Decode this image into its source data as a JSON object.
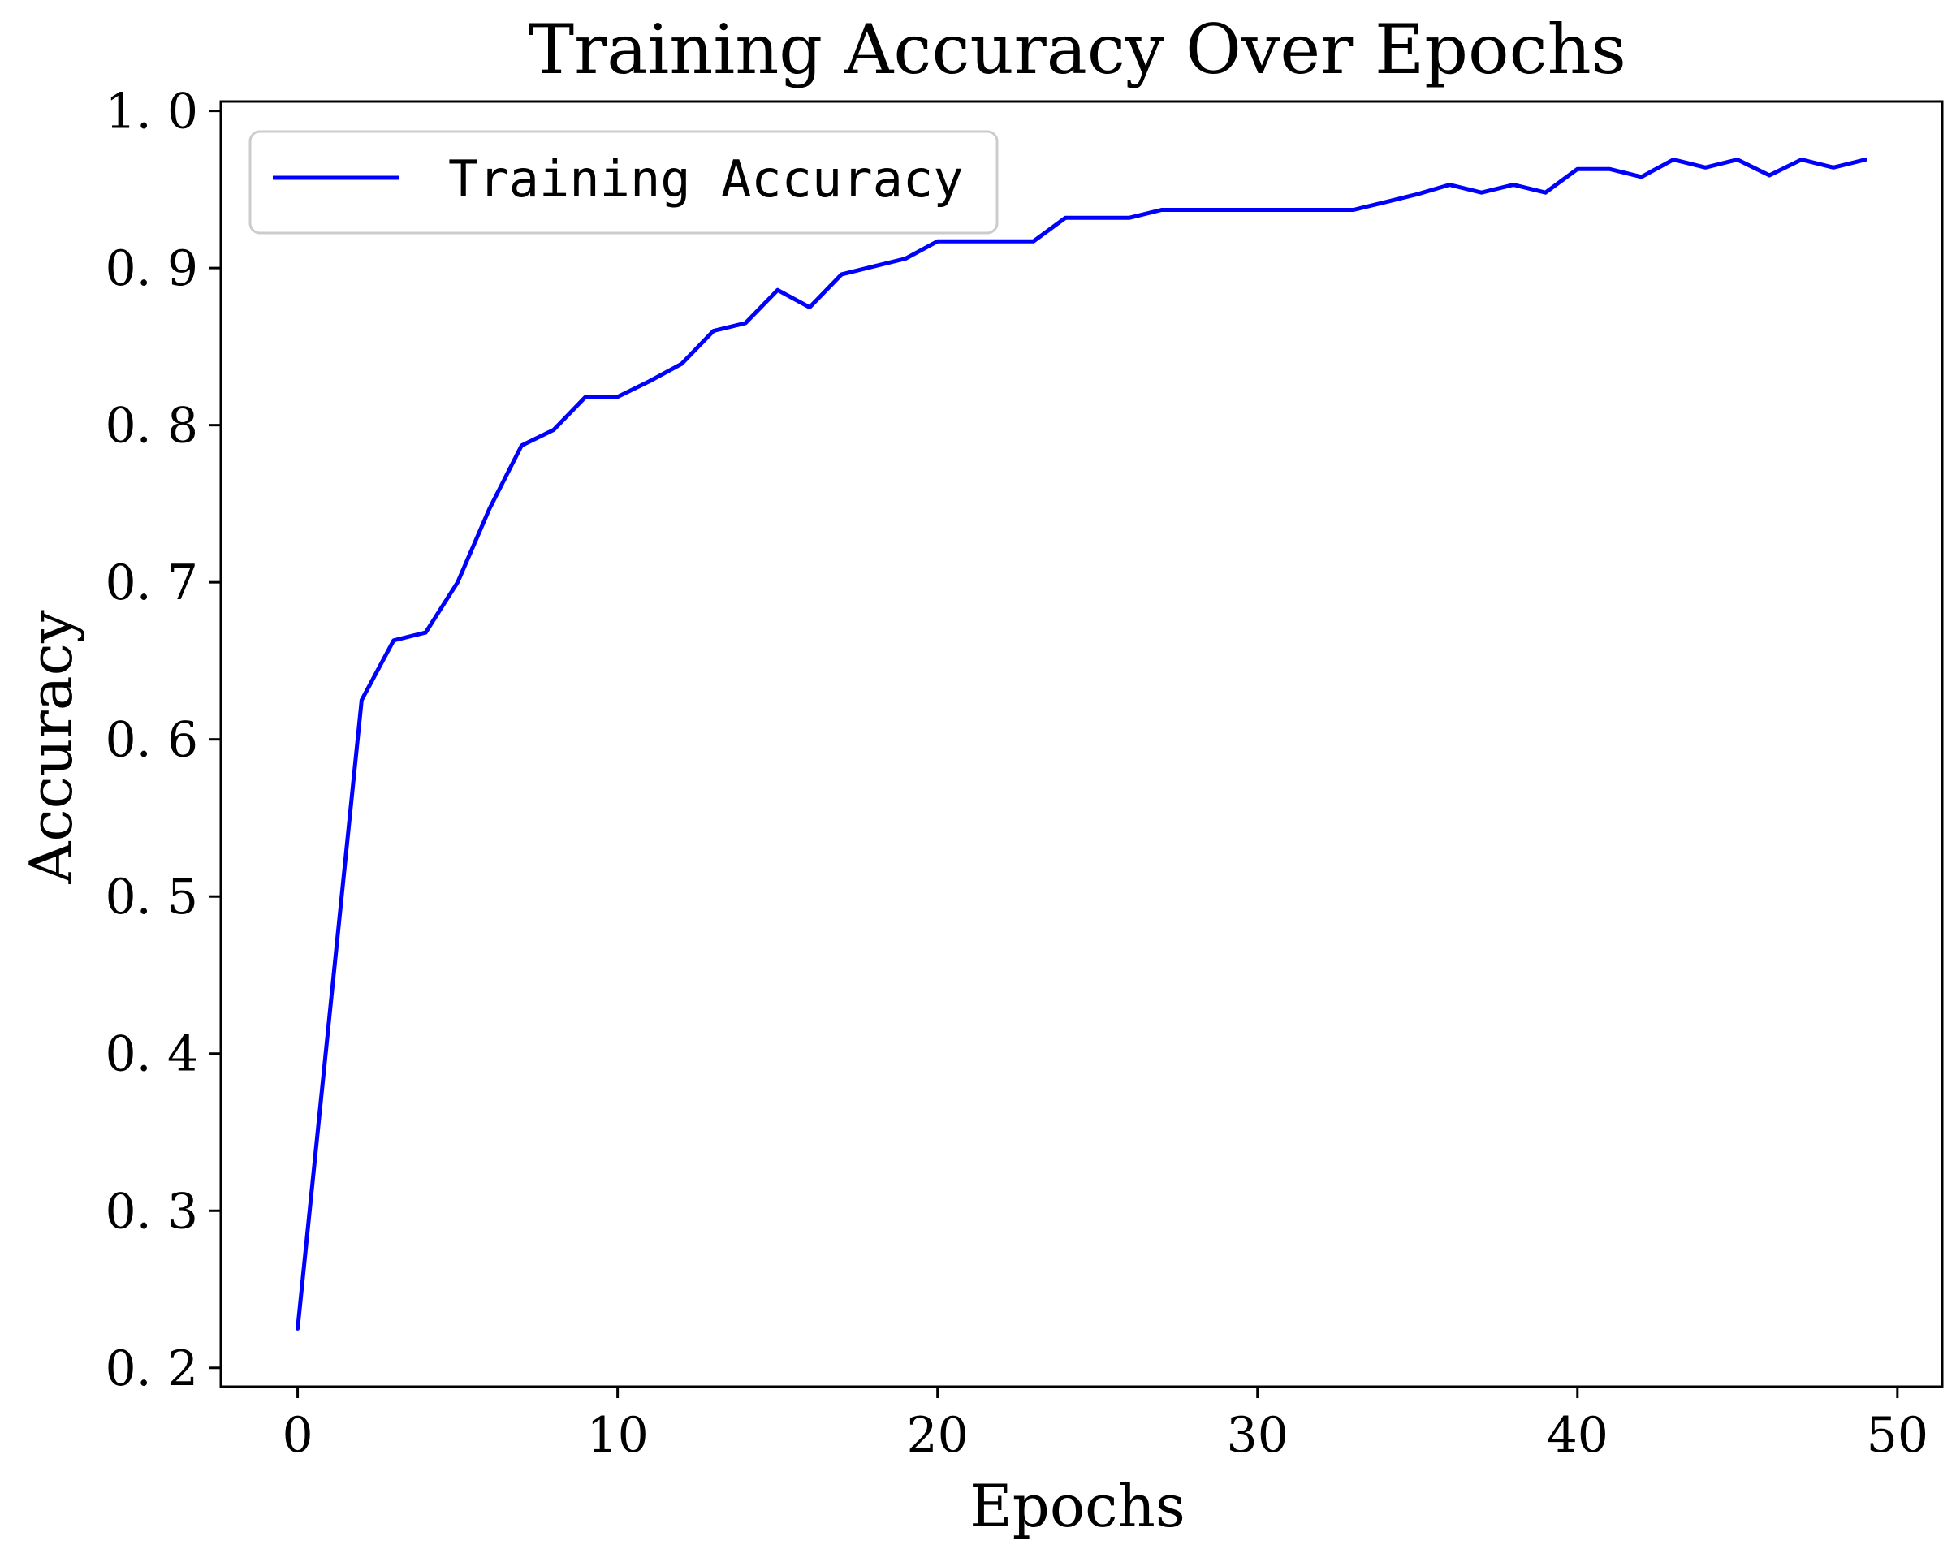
{
  "chart_data": {
    "type": "line",
    "title": "Training Accuracy Over Epochs",
    "xlabel": "Epochs",
    "ylabel": "Accuracy",
    "xlim": [
      -2.4,
      51.4
    ],
    "ylim": [
      0.188,
      1.006
    ],
    "xticks": [
      0,
      10,
      20,
      30,
      40,
      50
    ],
    "yticks": [
      0.2,
      0.3,
      0.4,
      0.5,
      0.6,
      0.7,
      0.8,
      0.9,
      1.0
    ],
    "xtick_labels": [
      "0",
      "10",
      "20",
      "30",
      "40",
      "50"
    ],
    "ytick_labels": [
      "0. 2",
      "0. 3",
      "0. 4",
      "0. 5",
      "0. 6",
      "0. 7",
      "0. 8",
      "0. 9",
      "1. 0"
    ],
    "grid": false,
    "legend": "top-left",
    "series": [
      {
        "name": "Training Accuracy",
        "color": "#0000ff",
        "x": [
          0,
          1,
          2,
          3,
          4,
          5,
          6,
          7,
          8,
          9,
          10,
          11,
          12,
          13,
          14,
          15,
          16,
          17,
          18,
          19,
          20,
          21,
          22,
          23,
          24,
          25,
          26,
          27,
          28,
          29,
          30,
          31,
          32,
          33,
          34,
          35,
          36,
          37,
          38,
          39,
          40,
          41,
          42,
          43,
          44,
          45,
          46,
          47,
          48,
          49
        ],
        "y": [
          0.225,
          0.425,
          0.625,
          0.663,
          0.668,
          0.7,
          0.747,
          0.787,
          0.797,
          0.818,
          0.818,
          0.828,
          0.839,
          0.86,
          0.865,
          0.886,
          0.875,
          0.896,
          0.901,
          0.906,
          0.917,
          0.917,
          0.917,
          0.917,
          0.932,
          0.932,
          0.932,
          0.937,
          0.937,
          0.937,
          0.937,
          0.937,
          0.937,
          0.937,
          0.942,
          0.947,
          0.953,
          0.948,
          0.953,
          0.948,
          0.963,
          0.963,
          0.958,
          0.969,
          0.964,
          0.969,
          0.959,
          0.969,
          0.964,
          0.969
        ]
      }
    ]
  }
}
